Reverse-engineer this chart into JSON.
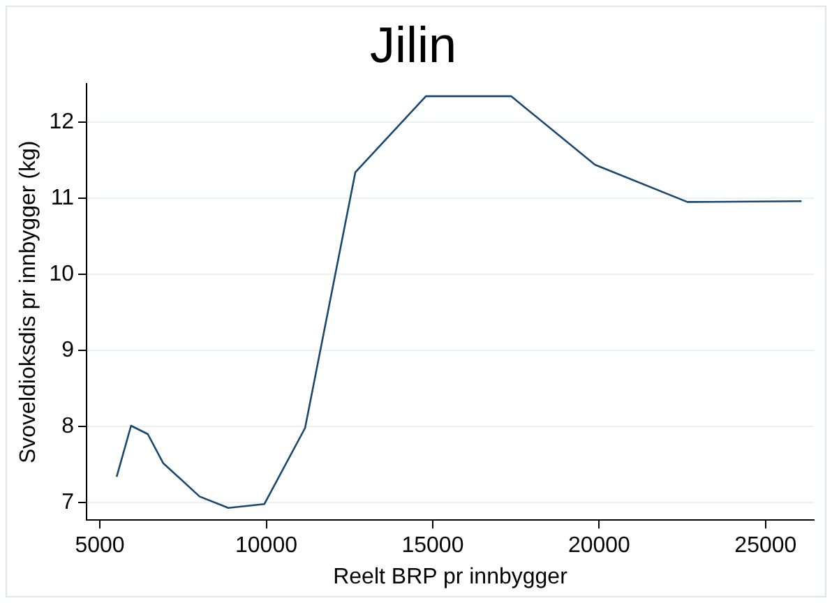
{
  "chart_data": {
    "type": "line",
    "title": "Jilin",
    "xlabel": "Reelt BRP pr innbygger",
    "ylabel": "Svoveldioksdis pr innbygger (kg)",
    "x": [
      5505,
      5937,
      6440,
      6900,
      7995,
      8860,
      9940,
      11165,
      12675,
      14795,
      17354,
      19873,
      22650,
      26080
    ],
    "series": [
      {
        "color": "#1a476f",
        "values": [
          7.34,
          8.01,
          7.9,
          7.52,
          7.08,
          6.93,
          6.98,
          7.98,
          11.34,
          12.34,
          12.34,
          11.44,
          10.95,
          10.96
        ]
      }
    ],
    "xlim": [
      4600,
      26450
    ],
    "xticks": [
      5000,
      10000,
      15000,
      20000,
      25000
    ],
    "ylim": [
      6.77,
      12.5
    ],
    "yticks": [
      7,
      8,
      9,
      10,
      11,
      12
    ],
    "grid": "y",
    "legend": false,
    "marker": "none",
    "line_style": "solid"
  }
}
